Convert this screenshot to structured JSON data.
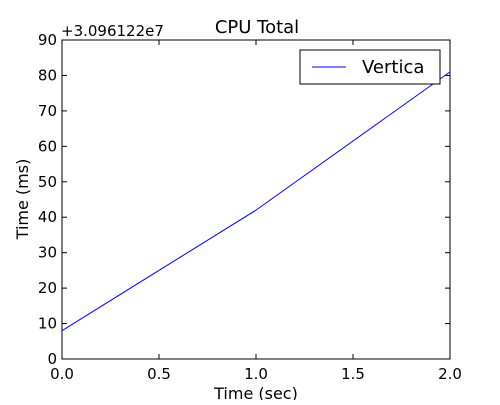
{
  "chart_data": {
    "type": "line",
    "title": "CPU Total",
    "xlabel": "Time (sec)",
    "ylabel": "Time (ms)",
    "y_offset_label": "+3.096122e7",
    "xlim": [
      0.0,
      2.0
    ],
    "ylim": [
      0,
      90
    ],
    "x_ticks": [
      "0.0",
      "0.5",
      "1.0",
      "1.5",
      "2.0"
    ],
    "y_ticks": [
      "0",
      "10",
      "20",
      "30",
      "40",
      "50",
      "60",
      "70",
      "80",
      "90"
    ],
    "grid": false,
    "legend_position": "top-right",
    "series": [
      {
        "name": "Vertica",
        "color": "#0000ff",
        "x": [
          0.0,
          1.0,
          2.0
        ],
        "y": [
          8,
          42,
          81
        ]
      }
    ]
  }
}
